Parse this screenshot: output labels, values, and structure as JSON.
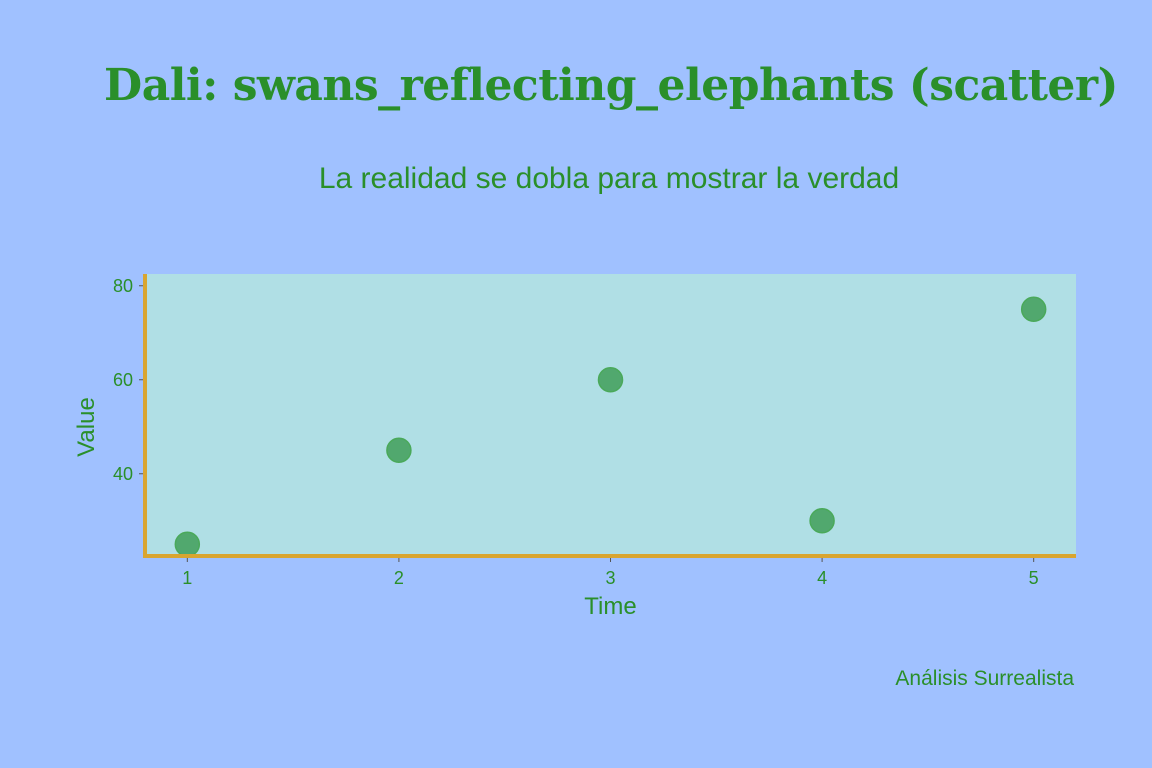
{
  "header": {
    "title": "Dali: swans_reflecting_elephants (scatter)",
    "subtitle": "La realidad se dobla para mostrar la verdad"
  },
  "footer": {
    "source": "Análisis Surrealista"
  },
  "colors": {
    "background": "#a0c1ff",
    "plot_background": "#b0dfe5",
    "text": "#2a8f2a",
    "marker": "#3a9a50",
    "axis_line": "#d9a530"
  },
  "chart_data": {
    "type": "scatter",
    "title": "Dali: swans_reflecting_elephants (scatter)",
    "subtitle": "La realidad se dobla para mostrar la verdad",
    "xlabel": "Time",
    "ylabel": "Value",
    "x": [
      1,
      2,
      3,
      4,
      5
    ],
    "y": [
      25,
      45,
      60,
      30,
      75
    ],
    "xlim": [
      0.8,
      5.2
    ],
    "ylim": [
      22.5,
      82.5
    ],
    "xticks": [
      1,
      2,
      3,
      4,
      5
    ],
    "yticks": [
      40,
      60,
      80
    ],
    "grid": false,
    "legend": "none"
  }
}
